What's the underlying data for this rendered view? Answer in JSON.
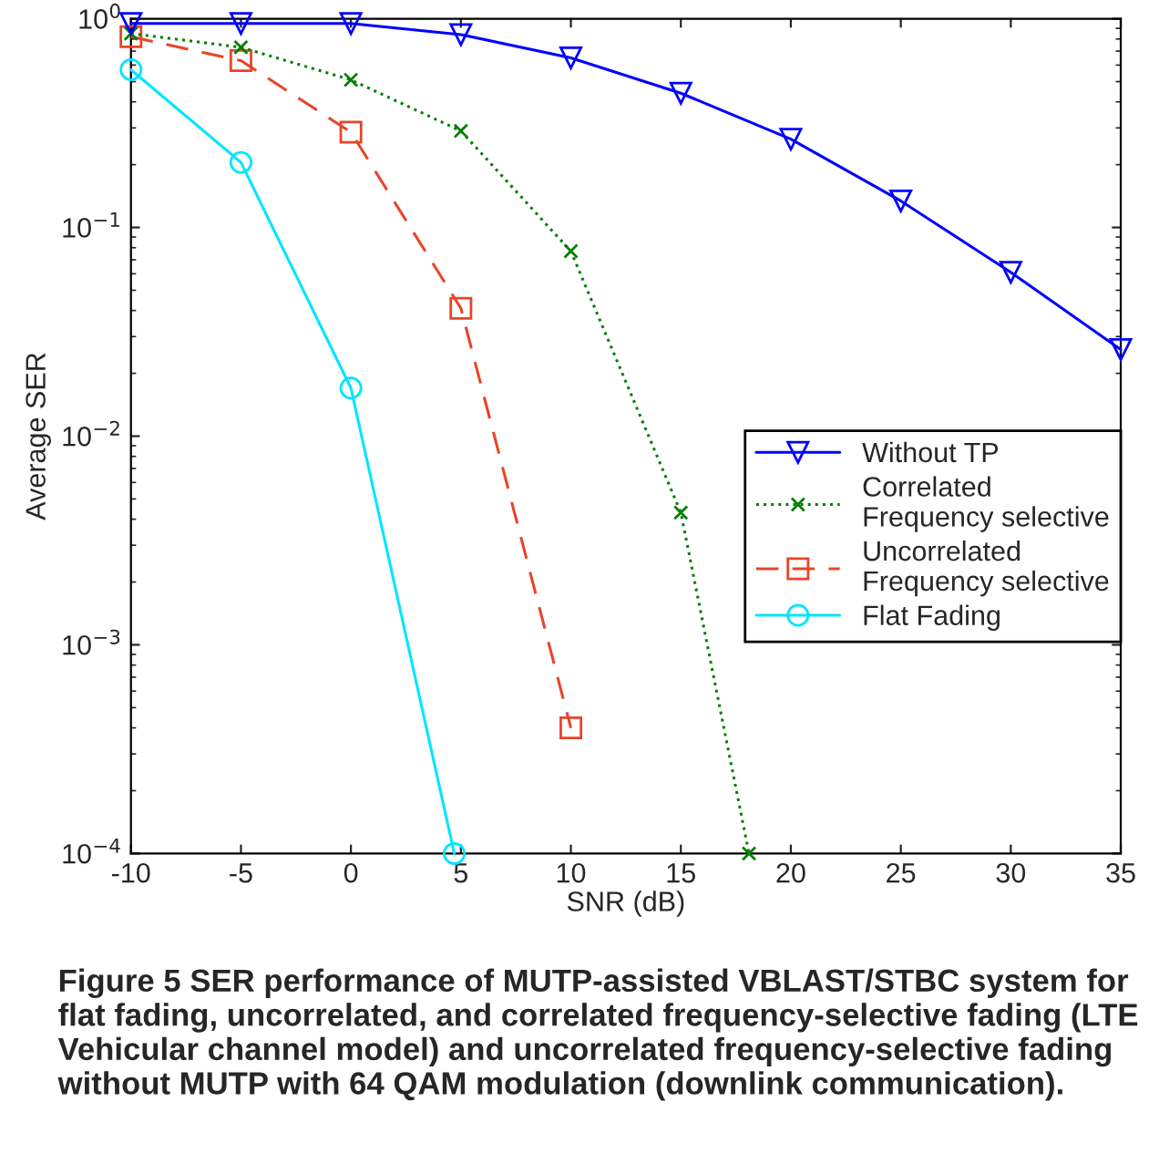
{
  "chart_data": {
    "type": "line",
    "xlabel": "SNR (dB)",
    "ylabel": "Average SER",
    "log": "y",
    "xlim": [
      -10,
      35
    ],
    "xticks": [
      -10,
      -5,
      0,
      5,
      10,
      15,
      20,
      25,
      30,
      35
    ],
    "ylim": [
      0.0001,
      1
    ],
    "yticks": [
      {
        "value": 0.0001,
        "label": "10$^{−4}$"
      },
      {
        "value": 0.001,
        "label": "10$^{−3}$"
      },
      {
        "value": 0.01,
        "label": "10$^{−2}$"
      },
      {
        "value": 0.1,
        "label": "10$^{−1}$"
      },
      {
        "value": 1,
        "label": "10$^{0}$"
      }
    ],
    "grid": false,
    "legend": "right",
    "series": [
      {
        "name": "Without TP",
        "color": "#0000ff",
        "marker": "triangle",
        "line_style": "solid",
        "x": [
          -10,
          -5,
          0,
          5,
          10,
          15,
          20,
          25,
          30,
          35
        ],
        "values": [
          0.95,
          0.95,
          0.95,
          0.84,
          0.65,
          0.44,
          0.265,
          0.134,
          0.061,
          0.026
        ]
      },
      {
        "name": "Correlated\nFrequency selective",
        "color": "#008000",
        "marker": "cross",
        "line_style": "dotted",
        "x": [
          -10,
          -5,
          0,
          5,
          10,
          15,
          18.1
        ],
        "values": [
          0.85,
          0.73,
          0.51,
          0.29,
          0.077,
          0.0043,
          0.0001
        ]
      },
      {
        "name": "Uncorrelated\nFrequency selective",
        "color": "#e8442a",
        "marker": "square",
        "line_style": "dashed",
        "x": [
          -10,
          -5,
          0,
          5,
          10
        ],
        "values": [
          0.82,
          0.63,
          0.286,
          0.041,
          0.0004
        ]
      },
      {
        "name": "Flat Fading",
        "color": "#00e5ff",
        "marker": "circle",
        "line_style": "solid",
        "x": [
          -10,
          -5,
          0,
          4.7
        ],
        "values": [
          0.57,
          0.205,
          0.017,
          0.0001
        ]
      }
    ],
    "annotations": [
      "Figure 5 SER performance of MUTP-assisted VBLAST/STBC system for flat fading, uncorrelated, and correlated frequency-selective fading (LTE Vehicular channel model) and uncorrelated frequency-selective fading without MUTP with 64 QAM modulation (downlink communication)."
    ]
  }
}
